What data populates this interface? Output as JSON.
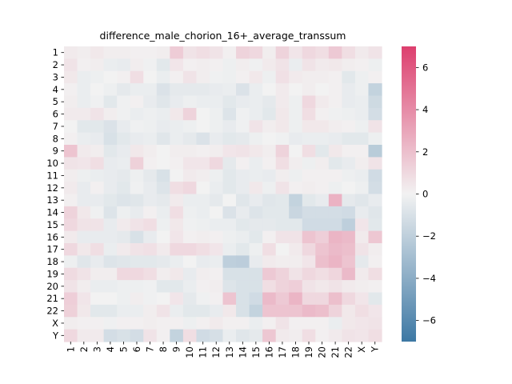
{
  "chart_data": {
    "type": "heatmap",
    "title": "difference_male_chorion_16+_average_transsum",
    "xlabel": "",
    "ylabel": "",
    "x_labels": [
      "1",
      "2",
      "3",
      "4",
      "5",
      "6",
      "7",
      "8",
      "9",
      "10",
      "11",
      "12",
      "13",
      "14",
      "15",
      "16",
      "17",
      "18",
      "19",
      "20",
      "21",
      "22",
      "X",
      "Y"
    ],
    "y_labels": [
      "1",
      "2",
      "3",
      "4",
      "5",
      "6",
      "7",
      "8",
      "9",
      "10",
      "11",
      "12",
      "13",
      "14",
      "15",
      "16",
      "17",
      "18",
      "19",
      "20",
      "21",
      "22",
      "X",
      "Y"
    ],
    "colorbar": {
      "vmin": -7,
      "vmax": 7,
      "ticks": [
        -6,
        -4,
        -2,
        0,
        2,
        4,
        6
      ],
      "low_color": "#3d78a4",
      "mid_color": "#f2f2f2",
      "high_color": "#dd3f6e"
    },
    "values": [
      [
        0.3,
        0.2,
        0.4,
        0.2,
        0.2,
        0.1,
        0.1,
        0.2,
        1.5,
        0.6,
        0.8,
        0.6,
        0.1,
        1.2,
        1.0,
        0.2,
        1.2,
        0.5,
        1.0,
        0.8,
        1.6,
        0.8,
        0.3,
        0.6
      ],
      [
        0.6,
        0.1,
        0.2,
        -0.3,
        -0.4,
        0.2,
        -0.1,
        -0.6,
        0.5,
        0.1,
        0.2,
        0.1,
        -0.2,
        0.2,
        -0.1,
        0.3,
        0.6,
        -0.3,
        0.6,
        0.3,
        0.4,
        0.2,
        0.1,
        -0.2
      ],
      [
        0.4,
        -0.3,
        -0.2,
        0.0,
        0.1,
        0.8,
        0.0,
        -0.3,
        0.1,
        0.6,
        0.2,
        -0.1,
        -0.2,
        0.1,
        0.4,
        -0.2,
        0.7,
        0.3,
        0.2,
        0.2,
        0.1,
        -0.6,
        -0.2,
        0.1
      ],
      [
        0.1,
        -0.3,
        0.0,
        -0.2,
        -0.5,
        -0.3,
        -0.3,
        -0.9,
        -0.5,
        -0.5,
        -0.5,
        -0.4,
        -0.3,
        -0.9,
        -0.3,
        0.0,
        0.3,
        0.0,
        0.2,
        0.0,
        0.1,
        -0.4,
        -0.2,
        -1.8
      ],
      [
        0.2,
        -0.3,
        -0.1,
        -0.6,
        -0.1,
        0.1,
        -0.4,
        -0.7,
        -0.4,
        -0.2,
        -0.3,
        -0.3,
        -0.6,
        -0.4,
        -0.3,
        -0.5,
        0.3,
        -0.2,
        1.0,
        0.3,
        0.1,
        -0.4,
        -0.3,
        -1.4
      ],
      [
        0.3,
        0.3,
        0.6,
        0.2,
        -0.1,
        -0.3,
        -0.2,
        -0.3,
        0.4,
        1.2,
        0.0,
        -0.2,
        -0.8,
        -0.1,
        -0.3,
        -0.6,
        0.4,
        -0.2,
        0.8,
        0.1,
        -0.1,
        -0.2,
        -0.3,
        -1.2
      ],
      [
        0.0,
        -0.6,
        -0.6,
        -0.9,
        -0.4,
        -0.1,
        -0.2,
        -0.4,
        -0.3,
        -0.2,
        0.0,
        -0.2,
        -0.4,
        -0.1,
        0.6,
        0.2,
        0.4,
        -0.2,
        0.4,
        0.4,
        0.2,
        0.1,
        -0.2,
        0.6
      ],
      [
        0.1,
        -0.3,
        -0.4,
        -1.0,
        -0.6,
        -0.4,
        -0.3,
        -0.7,
        -0.3,
        -0.5,
        -0.9,
        -0.4,
        -0.6,
        -0.5,
        -0.2,
        0.0,
        -0.1,
        -0.4,
        -0.3,
        -0.3,
        -0.4,
        -0.6,
        -0.6,
        -0.2
      ],
      [
        1.8,
        0.3,
        0.2,
        -0.6,
        -0.4,
        0.4,
        0.2,
        0.0,
        0.2,
        0.2,
        0.1,
        0.2,
        0.5,
        0.6,
        0.4,
        0.2,
        1.2,
        0.0,
        0.8,
        -0.6,
        0.4,
        0.1,
        0.1,
        -2.2
      ],
      [
        0.6,
        0.5,
        0.8,
        -0.4,
        -0.3,
        1.3,
        0.1,
        0.0,
        0.1,
        0.5,
        0.5,
        1.0,
        -0.5,
        0.1,
        -0.3,
        0.1,
        0.8,
        0.2,
        -0.2,
        0.2,
        -0.6,
        -0.4,
        0.2,
        0.6
      ],
      [
        0.2,
        -0.2,
        -0.3,
        -0.4,
        -0.5,
        -0.2,
        -0.5,
        -1.0,
        0.0,
        0.3,
        0.2,
        -0.2,
        -0.6,
        -0.4,
        -0.3,
        -0.4,
        0.2,
        -0.2,
        0.1,
        0.1,
        0.1,
        -0.2,
        -0.3,
        -1.3
      ],
      [
        0.3,
        -0.4,
        0.1,
        -0.4,
        -0.6,
        -0.1,
        -0.4,
        -0.8,
        0.8,
        1.0,
        0.0,
        -0.3,
        -0.6,
        -0.4,
        0.4,
        -0.2,
        0.6,
        0.1,
        0.2,
        0.1,
        -0.2,
        0.0,
        -0.2,
        -1.2
      ],
      [
        0.1,
        -0.4,
        -0.4,
        -0.6,
        -0.8,
        -0.7,
        -0.4,
        -0.5,
        0.3,
        -0.3,
        -0.3,
        -0.5,
        0.0,
        -0.7,
        -0.4,
        -0.7,
        -0.6,
        -1.8,
        -0.6,
        -0.4,
        2.5,
        -0.5,
        -0.7,
        -0.4
      ],
      [
        1.2,
        0.4,
        -0.1,
        -0.8,
        -0.2,
        -0.4,
        0.1,
        -0.3,
        0.8,
        -0.2,
        -0.3,
        0.0,
        -0.9,
        -0.4,
        -0.8,
        -0.6,
        -0.6,
        -1.6,
        -1.2,
        -1.2,
        -1.2,
        -1.3,
        -0.4,
        -0.7
      ],
      [
        1.0,
        0.6,
        0.6,
        -0.4,
        0.3,
        0.6,
        0.8,
        -0.2,
        0.4,
        -0.1,
        -0.2,
        -0.3,
        -0.3,
        -0.6,
        -0.5,
        -0.5,
        -0.6,
        -0.6,
        -1.3,
        -1.3,
        -1.3,
        -2.0,
        0.5,
        -0.6
      ],
      [
        0.3,
        -0.4,
        -0.4,
        -0.4,
        -0.5,
        -1.0,
        -0.4,
        0.0,
        0.5,
        0.1,
        0.2,
        0.1,
        -0.2,
        -0.3,
        -0.6,
        0.1,
        0.6,
        0.6,
        1.8,
        1.4,
        2.4,
        2.2,
        0.3,
        1.7
      ],
      [
        1.0,
        0.4,
        0.8,
        -0.3,
        0.3,
        0.6,
        0.7,
        0.3,
        1.0,
        1.0,
        0.8,
        0.5,
        -0.3,
        -0.6,
        -0.2,
        0.8,
        0.0,
        0.3,
        1.0,
        1.8,
        2.2,
        2.0,
        0.6,
        0.2
      ],
      [
        -0.2,
        -0.7,
        -0.4,
        -0.8,
        -0.7,
        -0.6,
        -0.6,
        -0.5,
        -0.3,
        0.0,
        -0.4,
        -0.3,
        -2.0,
        -2.1,
        -0.4,
        0.3,
        0.2,
        0.2,
        0.5,
        2.0,
        2.4,
        1.8,
        -0.5,
        0.1
      ],
      [
        0.9,
        0.6,
        0.2,
        0.2,
        1.0,
        1.0,
        0.8,
        0.2,
        0.4,
        -0.4,
        0.2,
        0.1,
        -1.0,
        -1.0,
        -1.0,
        1.6,
        1.2,
        0.6,
        1.0,
        0.8,
        1.1,
        2.2,
        0.3,
        0.8
      ],
      [
        0.6,
        0.2,
        -0.3,
        -0.3,
        -0.2,
        -0.2,
        -0.1,
        -0.6,
        -0.6,
        -0.3,
        0.1,
        0.2,
        -0.8,
        -1.0,
        -1.0,
        0.8,
        1.2,
        1.4,
        0.6,
        0.4,
        0.6,
        0.3,
        0.2,
        0.1
      ],
      [
        1.4,
        0.5,
        0.0,
        0.0,
        -0.2,
        0.2,
        -0.1,
        0.0,
        0.5,
        -0.5,
        -0.1,
        0.1,
        1.8,
        -1.0,
        -1.3,
        2.2,
        1.6,
        2.4,
        1.0,
        1.0,
        2.0,
        1.0,
        0.5,
        -0.6
      ],
      [
        1.3,
        0.4,
        -0.6,
        -0.6,
        -0.3,
        -0.3,
        0.2,
        0.6,
        -0.3,
        -0.6,
        -0.6,
        -0.4,
        0.4,
        -1.0,
        -1.8,
        1.8,
        1.8,
        1.8,
        2.2,
        2.0,
        1.2,
        0.4,
        0.8,
        0.5
      ],
      [
        0.2,
        0.1,
        0.1,
        -0.1,
        0.1,
        0.1,
        0.2,
        0.1,
        0.1,
        -0.2,
        0.1,
        0.3,
        0.1,
        0.1,
        -0.3,
        0.1,
        0.6,
        0.1,
        0.1,
        0.1,
        -0.3,
        0.4,
        0.5,
        0.6
      ],
      [
        1.0,
        0.3,
        0.3,
        -1.2,
        -1.0,
        -1.2,
        0.6,
        0.1,
        -1.8,
        0.8,
        -1.3,
        -1.1,
        -0.3,
        -0.7,
        -0.5,
        1.7,
        0.3,
        0.2,
        0.8,
        0.1,
        0.3,
        0.6,
        0.5,
        0.8
      ]
    ]
  }
}
